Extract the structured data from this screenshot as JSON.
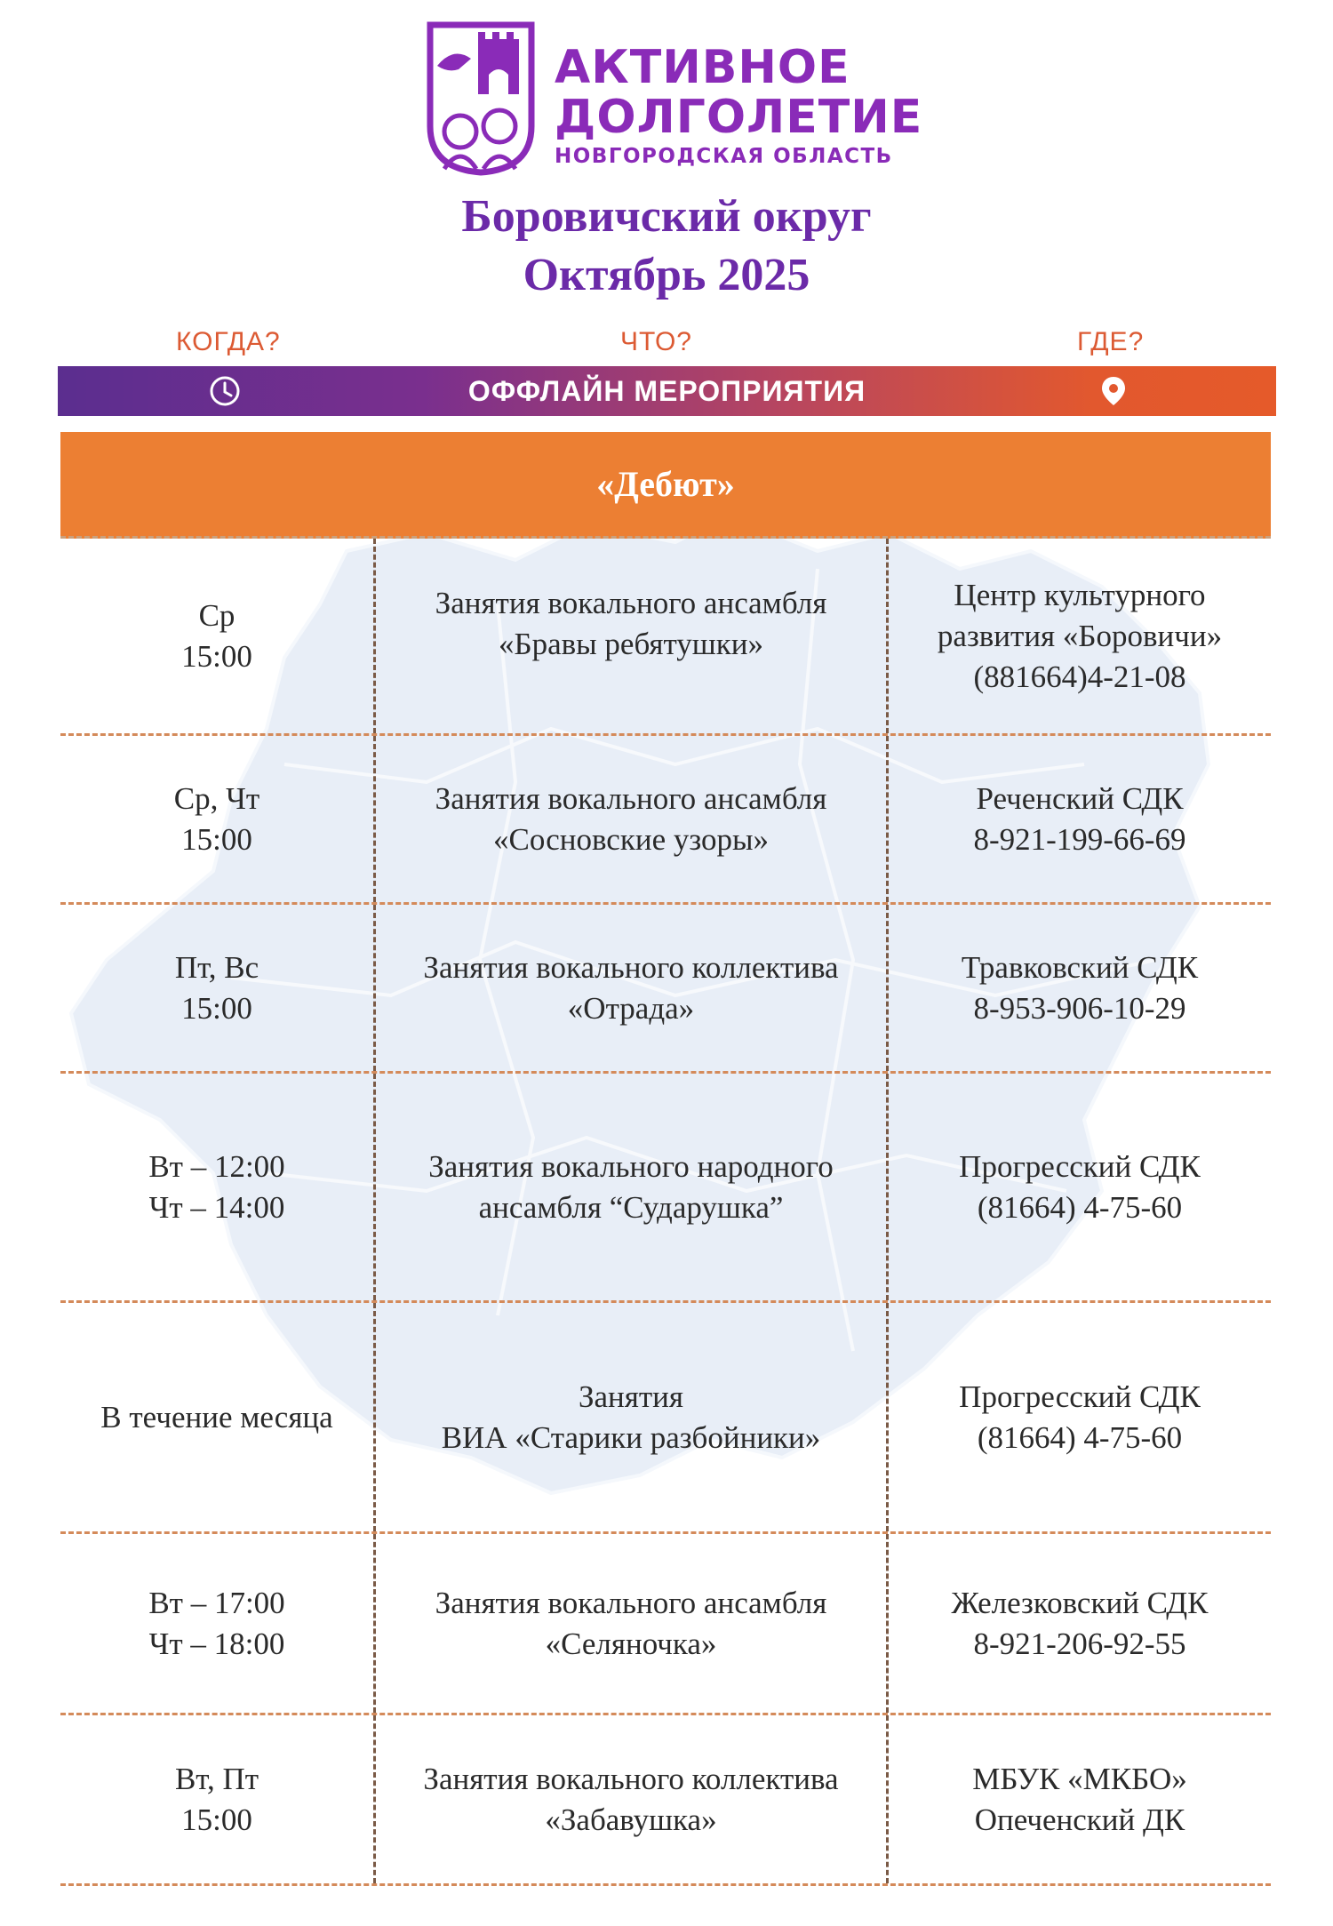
{
  "logo": {
    "line1": "АКТИВНОЕ",
    "line2": "ДОЛГОЛЕТИЕ",
    "line3": "НОВГОРОДСКАЯ ОБЛАСТЬ"
  },
  "header": {
    "title": "Боровичский округ",
    "subtitle": "Октябрь 2025"
  },
  "labels": {
    "when": "КОГДА?",
    "what": "ЧТО?",
    "where": "ГДЕ?"
  },
  "bar": {
    "title": "ОФФЛАЙН МЕРОПРИЯТИЯ",
    "left_icon": "clock-icon",
    "right_icon": "location-pin-icon"
  },
  "section": {
    "title": "«Дебют»"
  },
  "colors": {
    "purple": "#6b2aa8",
    "orange": "#ec7f33",
    "label_orange": "#dc5a33"
  },
  "rows": [
    {
      "when": [
        "Ср",
        "15:00"
      ],
      "what": [
        "Занятия вокального ансамбля",
        "«Бравы ребятушки»"
      ],
      "where": [
        "Центр культурного",
        "развития «Боровичи»",
        "(881664)4-21-08"
      ]
    },
    {
      "when": [
        "Ср, Чт",
        "15:00"
      ],
      "what": [
        "Занятия вокального ансамбля",
        "«Сосновские узоры»"
      ],
      "where": [
        "Реченский СДК",
        "8-921-199-66-69"
      ]
    },
    {
      "when": [
        "Пт, Вс",
        "15:00"
      ],
      "what": [
        "Занятия вокального коллектива",
        "«Отрада»"
      ],
      "where": [
        "Травковский СДК",
        "8-953-906-10-29"
      ]
    },
    {
      "when": [
        "Вт – 12:00",
        "Чт – 14:00"
      ],
      "what": [
        "Занятия вокального народного",
        "ансамбля “Сударушка”"
      ],
      "where": [
        "Прогресский СДК",
        "(81664) 4-75-60"
      ]
    },
    {
      "when": [
        "В течение месяца"
      ],
      "what": [
        "Занятия",
        "ВИА «Старики разбойники»"
      ],
      "where": [
        "Прогресский СДК",
        "(81664) 4-75-60"
      ]
    },
    {
      "when": [
        "Вт – 17:00",
        "Чт – 18:00"
      ],
      "what": [
        "Занятия вокального ансамбля",
        "«Селяночка»"
      ],
      "where": [
        "Железковский СДК",
        "8-921-206-92-55"
      ]
    },
    {
      "when": [
        "Вт, Пт",
        "15:00"
      ],
      "what": [
        "Занятия вокального коллектива",
        "«Забавушка»"
      ],
      "where": [
        "МБУК «МКБО»",
        "Опеченский ДК"
      ]
    }
  ]
}
